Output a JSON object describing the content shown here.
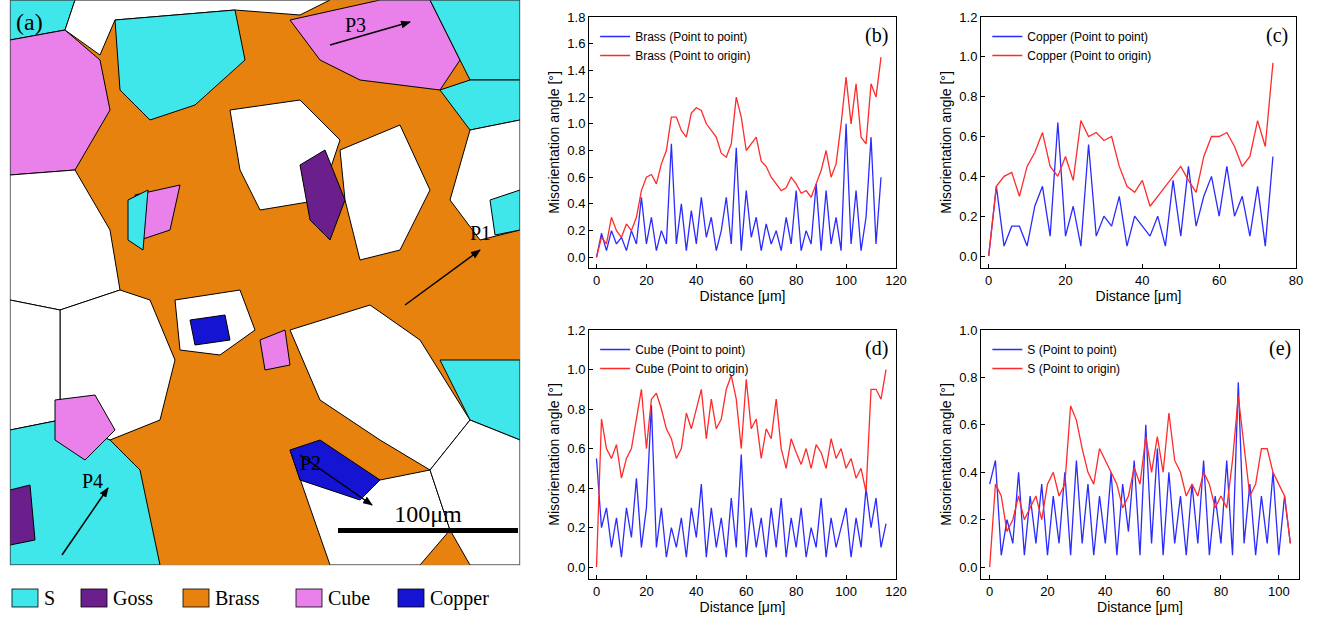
{
  "chart_data": [
    {
      "type": "line",
      "annotations": [
        "(b)"
      ],
      "x_label": "Distance [μm]",
      "y_label": "Misorientation angle [°]",
      "x": [
        0,
        2,
        4,
        6,
        8,
        10,
        12,
        14,
        16,
        18,
        20,
        22,
        24,
        26,
        28,
        30,
        32,
        34,
        36,
        38,
        40,
        42,
        44,
        46,
        48,
        50,
        52,
        54,
        56,
        58,
        60,
        62,
        64,
        66,
        68,
        70,
        72,
        74,
        76,
        78,
        80,
        82,
        84,
        86,
        88,
        90,
        92,
        94,
        96,
        98,
        100,
        102,
        104,
        106,
        108,
        110,
        112,
        114
      ],
      "series": [
        {
          "name": "Brass (Point to point)",
          "color": "#2b2bff",
          "values": [
            0,
            0.18,
            0.05,
            0.2,
            0.1,
            0.15,
            0.05,
            0.2,
            0.1,
            0.45,
            0.1,
            0.3,
            0.05,
            0.2,
            0.1,
            0.85,
            0.1,
            0.4,
            0.05,
            0.35,
            0.1,
            0.45,
            0.15,
            0.3,
            0.05,
            0.2,
            0.45,
            0.1,
            0.82,
            0.05,
            0.5,
            0.15,
            0.3,
            0.05,
            0.25,
            0.1,
            0.2,
            0.05,
            0.3,
            0.1,
            0.5,
            0.05,
            0.2,
            0.1,
            0.55,
            0.05,
            0.5,
            0.1,
            0.3,
            0.05,
            1.0,
            0.1,
            0.5,
            0.05,
            0.3,
            0.9,
            0.1,
            0.6
          ]
        },
        {
          "name": "Brass (Point to origin)",
          "color": "#ff2b2b",
          "values": [
            0,
            0.15,
            0.1,
            0.3,
            0.2,
            0.15,
            0.25,
            0.2,
            0.3,
            0.5,
            0.6,
            0.62,
            0.55,
            0.7,
            0.8,
            1.05,
            1.05,
            0.95,
            0.9,
            1.08,
            1.12,
            1.1,
            1.0,
            0.95,
            0.9,
            0.78,
            0.75,
            0.85,
            1.2,
            1.05,
            0.8,
            0.85,
            0.9,
            0.72,
            0.68,
            0.6,
            0.55,
            0.5,
            0.52,
            0.6,
            0.55,
            0.48,
            0.5,
            0.45,
            0.55,
            0.65,
            0.8,
            0.6,
            0.7,
            1.0,
            1.35,
            1.0,
            1.3,
            0.9,
            0.85,
            1.3,
            1.2,
            1.5
          ]
        }
      ],
      "xlim": [
        -3,
        120
      ],
      "ylim": [
        -0.08,
        1.8
      ],
      "xticks": [
        0,
        20,
        40,
        60,
        80,
        100,
        120
      ],
      "yticks": [
        {
          "value": 0,
          "label": "0.0"
        },
        0.2,
        0.4,
        0.6,
        0.8,
        {
          "value": 1,
          "label": "1.0"
        },
        1.2,
        1.4,
        1.6,
        1.8
      ],
      "legend": "upper left",
      "grid": false
    },
    {
      "type": "line",
      "annotations": [
        "(c)"
      ],
      "x_label": "Distance [μm]",
      "y_label": "Misorientation angle [°]",
      "x": [
        0,
        2,
        4,
        6,
        8,
        10,
        12,
        14,
        16,
        18,
        20,
        22,
        24,
        26,
        28,
        30,
        32,
        34,
        36,
        38,
        40,
        42,
        44,
        46,
        48,
        50,
        52,
        54,
        56,
        58,
        60,
        62,
        64,
        66,
        68,
        70,
        72,
        74
      ],
      "series": [
        {
          "name": "Copper (Point to point)",
          "color": "#2b2bff",
          "values": [
            0,
            0.35,
            0.05,
            0.15,
            0.15,
            0.05,
            0.25,
            0.35,
            0.1,
            0.67,
            0.1,
            0.25,
            0.05,
            0.56,
            0.1,
            0.2,
            0.15,
            0.3,
            0.05,
            0.2,
            0.15,
            0.1,
            0.2,
            0.05,
            0.38,
            0.1,
            0.45,
            0.15,
            0.3,
            0.4,
            0.2,
            0.45,
            0.2,
            0.3,
            0.1,
            0.35,
            0.05,
            0.5
          ]
        },
        {
          "name": "Copper (Point to origin)",
          "color": "#ff2b2b",
          "values": [
            0,
            0.35,
            0.4,
            0.42,
            0.3,
            0.45,
            0.52,
            0.62,
            0.45,
            0.4,
            0.5,
            0.38,
            0.68,
            0.6,
            0.62,
            0.58,
            0.6,
            0.45,
            0.35,
            0.32,
            0.38,
            0.25,
            0.3,
            0.35,
            0.4,
            0.45,
            0.38,
            0.32,
            0.5,
            0.6,
            0.6,
            0.62,
            0.55,
            0.45,
            0.5,
            0.68,
            0.55,
            0.97
          ]
        }
      ],
      "xlim": [
        -2,
        80
      ],
      "ylim": [
        -0.06,
        1.2
      ],
      "xticks": [
        0,
        20,
        40,
        60,
        80
      ],
      "yticks": [
        {
          "value": 0,
          "label": "0.0"
        },
        0.2,
        0.4,
        0.6,
        0.8,
        {
          "value": 1,
          "label": "1.0"
        },
        1.2
      ],
      "legend": "upper left",
      "grid": false
    },
    {
      "type": "line",
      "annotations": [
        "(d)"
      ],
      "x_label": "Distance [μm]",
      "y_label": "Misorientation angle [°]",
      "x": [
        0,
        2,
        4,
        6,
        8,
        10,
        12,
        14,
        16,
        18,
        20,
        22,
        24,
        26,
        28,
        30,
        32,
        34,
        36,
        38,
        40,
        42,
        44,
        46,
        48,
        50,
        52,
        54,
        56,
        58,
        60,
        62,
        64,
        66,
        68,
        70,
        72,
        74,
        76,
        78,
        80,
        82,
        84,
        86,
        88,
        90,
        92,
        94,
        96,
        98,
        100,
        102,
        104,
        106,
        108,
        110,
        112,
        114,
        116
      ],
      "series": [
        {
          "name": "Cube (Point to point)",
          "color": "#2b2bff",
          "values": [
            0.55,
            0.2,
            0.3,
            0.1,
            0.25,
            0.05,
            0.3,
            0.15,
            0.45,
            0.1,
            0.3,
            0.82,
            0.1,
            0.3,
            0.05,
            0.2,
            0.1,
            0.25,
            0.05,
            0.3,
            0.15,
            0.42,
            0.05,
            0.3,
            0.1,
            0.25,
            0.05,
            0.35,
            0.1,
            0.57,
            0.05,
            0.3,
            0.1,
            0.25,
            0.05,
            0.3,
            0.1,
            0.35,
            0.05,
            0.25,
            0.1,
            0.3,
            0.05,
            0.2,
            0.1,
            0.35,
            0.05,
            0.25,
            0.1,
            0.2,
            0.3,
            0.05,
            0.25,
            0.1,
            0.4,
            0.2,
            0.35,
            0.1,
            0.22
          ]
        },
        {
          "name": "Cube (Point to origin)",
          "color": "#ff2b2b",
          "values": [
            0,
            0.75,
            0.6,
            0.55,
            0.62,
            0.45,
            0.55,
            0.6,
            0.75,
            0.9,
            0.6,
            0.85,
            0.88,
            0.8,
            0.7,
            0.65,
            0.55,
            0.6,
            0.78,
            0.7,
            0.8,
            0.9,
            0.65,
            0.85,
            0.7,
            0.75,
            0.9,
            0.97,
            0.85,
            0.6,
            0.95,
            0.7,
            0.75,
            0.55,
            0.7,
            0.65,
            0.85,
            0.6,
            0.5,
            0.65,
            0.58,
            0.52,
            0.6,
            0.5,
            0.62,
            0.58,
            0.5,
            0.65,
            0.55,
            0.6,
            0.5,
            0.55,
            0.45,
            0.5,
            0.38,
            0.9,
            0.9,
            0.85,
            1.0
          ]
        }
      ],
      "xlim": [
        -3,
        120
      ],
      "ylim": [
        -0.06,
        1.2
      ],
      "xticks": [
        0,
        20,
        40,
        60,
        80,
        100,
        120
      ],
      "yticks": [
        {
          "value": 0,
          "label": "0.0"
        },
        0.2,
        0.4,
        0.6,
        0.8,
        {
          "value": 1,
          "label": "1.0"
        },
        1.2
      ],
      "legend": "upper left",
      "grid": false
    },
    {
      "type": "line",
      "annotations": [
        "(e)"
      ],
      "x_label": "Distance [μm]",
      "y_label": "Misorientation angle [°]",
      "x": [
        0,
        2,
        4,
        6,
        8,
        10,
        12,
        14,
        16,
        18,
        20,
        22,
        24,
        26,
        28,
        30,
        32,
        34,
        36,
        38,
        40,
        42,
        44,
        46,
        48,
        50,
        52,
        54,
        56,
        58,
        60,
        62,
        64,
        66,
        68,
        70,
        72,
        74,
        76,
        78,
        80,
        82,
        84,
        86,
        88,
        90,
        92,
        94,
        96,
        98,
        100,
        102,
        104
      ],
      "series": [
        {
          "name": "S (Point to point)",
          "color": "#2b2bff",
          "values": [
            0.35,
            0.45,
            0.05,
            0.2,
            0.1,
            0.4,
            0.05,
            0.3,
            0.1,
            0.35,
            0.05,
            0.3,
            0.1,
            0.4,
            0.05,
            0.45,
            0.1,
            0.35,
            0.05,
            0.3,
            0.1,
            0.4,
            0.05,
            0.35,
            0.15,
            0.45,
            0.05,
            0.6,
            0.1,
            0.5,
            0.05,
            0.4,
            0.1,
            0.3,
            0.05,
            0.35,
            0.1,
            0.45,
            0.05,
            0.3,
            0.1,
            0.45,
            0.05,
            0.78,
            0.1,
            0.35,
            0.05,
            0.3,
            0.1,
            0.4,
            0.05,
            0.3,
            0.1
          ]
        },
        {
          "name": "S (Point to origin)",
          "color": "#ff2b2b",
          "values": [
            0,
            0.35,
            0.3,
            0.15,
            0.2,
            0.3,
            0.2,
            0.25,
            0.3,
            0.2,
            0.35,
            0.4,
            0.3,
            0.35,
            0.68,
            0.62,
            0.5,
            0.4,
            0.35,
            0.5,
            0.45,
            0.4,
            0.35,
            0.25,
            0.3,
            0.42,
            0.35,
            0.55,
            0.4,
            0.55,
            0.4,
            0.65,
            0.45,
            0.4,
            0.3,
            0.35,
            0.3,
            0.4,
            0.35,
            0.25,
            0.3,
            0.25,
            0.45,
            0.72,
            0.5,
            0.3,
            0.35,
            0.5,
            0.5,
            0.4,
            0.35,
            0.3,
            0.1
          ]
        }
      ],
      "xlim": [
        -3,
        107
      ],
      "ylim": [
        -0.05,
        1.0
      ],
      "xticks": [
        0,
        20,
        40,
        60,
        80,
        100
      ],
      "yticks": [
        {
          "value": 0,
          "label": "0.0"
        },
        0.2,
        0.4,
        0.6,
        0.8,
        {
          "value": 1,
          "label": "1.0"
        }
      ],
      "legend": "upper left",
      "grid": false
    }
  ],
  "map": {
    "label": "(a)",
    "scale_bar": "100μm",
    "paths": [
      "P1",
      "P2",
      "P3",
      "P4"
    ],
    "legend": [
      {
        "name": "S",
        "color": "#3fe6ea"
      },
      {
        "name": "Goss",
        "color": "#6b1f8c"
      },
      {
        "name": "Brass",
        "color": "#e8820e"
      },
      {
        "name": "Cube",
        "color": "#ea80ea"
      },
      {
        "name": "Copper",
        "color": "#1414d2"
      }
    ]
  }
}
